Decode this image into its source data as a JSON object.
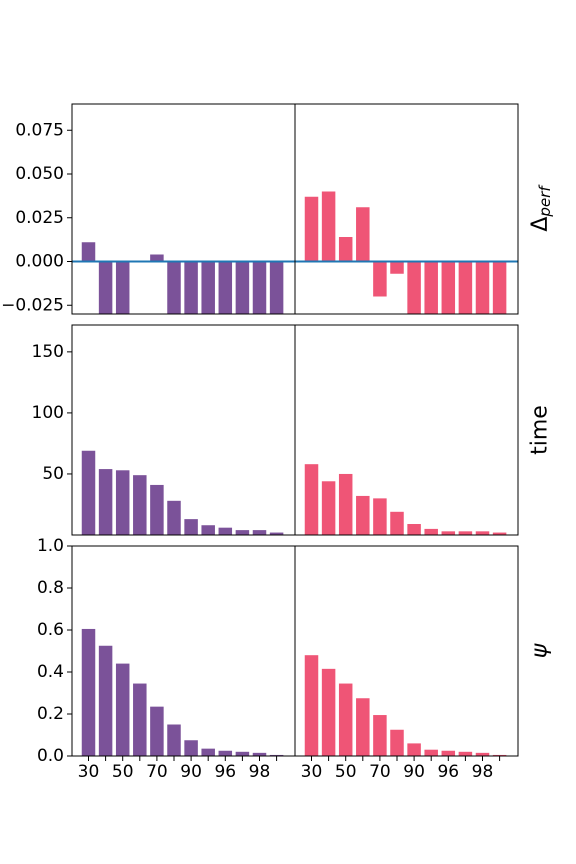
{
  "colors": {
    "left": "#7b5299",
    "right": "#ef5576",
    "zero_line": "#1f77b4",
    "axis": "#000000"
  },
  "x_tick_labels": [
    "30",
    "50",
    "70",
    "90",
    "96",
    "98"
  ],
  "chart_data": [
    {
      "type": "bar",
      "row": "perf",
      "ylabel": "Δperf",
      "ylabel_main": "Δ",
      "ylabel_sub": "perf",
      "ylim": [
        -0.03,
        0.09
      ],
      "yticks": [
        -0.025,
        0.0,
        0.025,
        0.05,
        0.075
      ],
      "ytick_labels": [
        "−0.025",
        "0.000",
        "0.025",
        "0.050",
        "0.075"
      ],
      "zero_line": true,
      "series": [
        {
          "panel": "left",
          "values": [
            0.011,
            -0.035,
            -0.035,
            0.0,
            0.004,
            -0.035,
            -0.035,
            -0.035,
            -0.035,
            -0.035,
            -0.035,
            -0.035
          ]
        },
        {
          "panel": "right",
          "values": [
            0.037,
            0.04,
            0.014,
            0.031,
            -0.02,
            -0.007,
            -0.035,
            -0.035,
            -0.035,
            -0.035,
            -0.035,
            -0.035
          ]
        }
      ]
    },
    {
      "type": "bar",
      "row": "time",
      "ylabel": "time",
      "ylim": [
        0,
        172
      ],
      "yticks": [
        50,
        100,
        150
      ],
      "ytick_labels": [
        "50",
        "100",
        "150"
      ],
      "series": [
        {
          "panel": "left",
          "values": [
            69,
            54,
            53,
            49,
            41,
            28,
            13,
            8,
            6,
            4,
            4,
            2
          ]
        },
        {
          "panel": "right",
          "values": [
            58,
            44,
            50,
            32,
            30,
            19,
            9,
            5,
            3,
            3,
            3,
            2
          ]
        }
      ]
    },
    {
      "type": "bar",
      "row": "psi",
      "ylabel": "ψ",
      "ylim": [
        0,
        1.0
      ],
      "yticks": [
        0.0,
        0.2,
        0.4,
        0.6,
        0.8,
        1.0
      ],
      "ytick_labels": [
        "0.0",
        "0.2",
        "0.4",
        "0.6",
        "0.8",
        "1.0"
      ],
      "series": [
        {
          "panel": "left",
          "values": [
            0.605,
            0.525,
            0.44,
            0.345,
            0.235,
            0.15,
            0.075,
            0.035,
            0.025,
            0.02,
            0.015,
            0.005
          ]
        },
        {
          "panel": "right",
          "values": [
            0.48,
            0.415,
            0.345,
            0.275,
            0.195,
            0.125,
            0.06,
            0.03,
            0.025,
            0.02,
            0.015,
            0.005
          ]
        }
      ]
    }
  ]
}
